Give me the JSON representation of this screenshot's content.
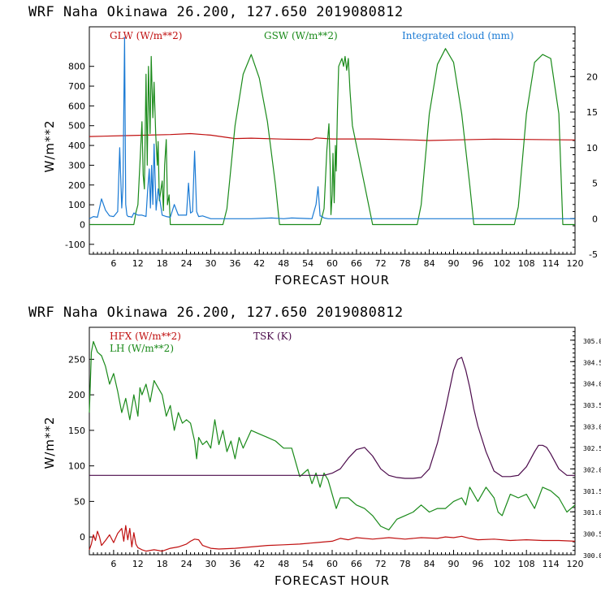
{
  "colors": {
    "red": "#c01010",
    "green": "#1a8a1a",
    "blue": "#1a7ad4",
    "purple": "#4b0a4b"
  },
  "chart_data": [
    {
      "type": "line",
      "title": "WRF   Naha Okinawa   26.200, 127.650   2019080812",
      "xlabel": "FORECAST HOUR",
      "ylabel": "W/m**2",
      "xlim": [
        0,
        120
      ],
      "ylim": [
        -150,
        1000
      ],
      "y2lim": [
        -5,
        27
      ],
      "x_ticks": [
        "6",
        "12",
        "18",
        "24",
        "30",
        "36",
        "42",
        "48",
        "54",
        "60",
        "66",
        "72",
        "78",
        "84",
        "90",
        "96",
        "102",
        "108",
        "114",
        "120"
      ],
      "y_ticks": [
        "-100",
        "0",
        "100",
        "200",
        "300",
        "400",
        "500",
        "600",
        "700",
        "800"
      ],
      "y2_ticks": [
        "-5",
        "0",
        "5",
        "10",
        "15",
        "20"
      ],
      "legend": [
        "GLW (W/m**2)",
        "GSW (W/m**2)",
        "Integrated cloud (mm)"
      ],
      "series": [
        {
          "name": "GLW (W/m**2)",
          "axis": "left",
          "color": "red",
          "x": [
            0,
            10,
            20,
            25,
            30,
            36,
            40,
            48,
            50,
            55,
            56,
            60,
            70,
            80,
            84,
            90,
            100,
            110,
            120
          ],
          "y": [
            445,
            450,
            455,
            460,
            452,
            435,
            437,
            432,
            431,
            430,
            438,
            433,
            433,
            428,
            425,
            428,
            432,
            430,
            428
          ]
        },
        {
          "name": "GSW (W/m**2)",
          "axis": "left",
          "color": "green",
          "x": [
            0,
            11,
            11.5,
            12,
            13,
            13.3,
            13.6,
            14,
            14.3,
            14.6,
            15,
            15.3,
            15.7,
            16,
            16.4,
            16.8,
            17,
            17.3,
            18,
            18.3,
            18.6,
            19,
            19.3,
            19.7,
            20,
            21,
            33,
            34,
            36,
            38,
            40,
            42,
            44,
            46,
            47,
            57,
            58,
            58.7,
            59.2,
            59.5,
            59.7,
            60,
            60.2,
            60.5,
            60.8,
            61,
            61.3,
            61.6,
            62,
            62.4,
            62.8,
            63.2,
            63.6,
            64,
            64.4,
            65,
            66,
            68,
            70,
            71,
            81,
            82,
            84,
            86,
            88,
            90,
            92,
            94,
            95,
            105,
            106,
            108,
            110,
            112,
            114,
            116,
            117,
            120
          ],
          "y": [
            0,
            0,
            60,
            100,
            520,
            250,
            180,
            760,
            300,
            800,
            460,
            850,
            540,
            720,
            460,
            300,
            420,
            120,
            220,
            70,
            300,
            430,
            100,
            150,
            0,
            0,
            0,
            80,
            500,
            760,
            860,
            740,
            520,
            200,
            0,
            0,
            80,
            380,
            510,
            300,
            50,
            150,
            360,
            110,
            400,
            270,
            580,
            800,
            820,
            840,
            800,
            850,
            780,
            840,
            680,
            500,
            400,
            200,
            0,
            0,
            0,
            100,
            560,
            810,
            890,
            820,
            560,
            200,
            0,
            0,
            90,
            560,
            820,
            860,
            840,
            560,
            0,
            0
          ]
        },
        {
          "name": "Integrated cloud (mm)",
          "axis": "right",
          "color": "blue",
          "x": [
            0,
            1,
            2,
            3,
            4,
            5,
            6,
            7,
            7.5,
            8,
            8.3,
            8.7,
            9,
            9.3,
            9.6,
            10,
            10.5,
            11,
            12,
            13,
            14,
            14.4,
            14.8,
            15.1,
            15.4,
            15.7,
            16,
            16.5,
            17,
            18,
            19,
            20,
            21,
            22,
            23,
            24,
            24.5,
            25,
            25.5,
            26,
            26.5,
            27,
            28,
            30,
            35,
            40,
            45,
            48,
            50,
            55,
            56,
            56.5,
            57,
            57.5,
            58,
            59,
            60,
            62,
            65,
            70,
            80,
            90,
            100,
            110,
            120
          ],
          "y": [
            0,
            0.3,
            0.2,
            2.8,
            1.2,
            0.4,
            0.3,
            1,
            10,
            1.5,
            4.5,
            25.5,
            2,
            0.5,
            0.3,
            0.3,
            0.2,
            0.8,
            0.5,
            0.5,
            0.3,
            4,
            7,
            1.5,
            7.5,
            2,
            10.5,
            1.2,
            4.2,
            0.5,
            0.3,
            0.2,
            2,
            0.5,
            0.5,
            0.5,
            5,
            0.8,
            1,
            9.5,
            1,
            0.3,
            0.4,
            0,
            0,
            0,
            0.1,
            0,
            0.1,
            0,
            2,
            4.5,
            0.4,
            0.3,
            0.1,
            0,
            0,
            0,
            0,
            0,
            0,
            0,
            0,
            0,
            0
          ]
        }
      ]
    },
    {
      "type": "line",
      "title": "WRF   Naha Okinawa   26.200, 127.650   2019080812",
      "xlabel": "FORECAST HOUR",
      "ylabel": "W/m**2",
      "xlim": [
        0,
        120
      ],
      "ylim": [
        -25,
        295
      ],
      "y2lim": [
        300.0,
        305.3
      ],
      "x_ticks": [
        "6",
        "12",
        "18",
        "24",
        "30",
        "36",
        "42",
        "48",
        "54",
        "60",
        "66",
        "72",
        "78",
        "84",
        "90",
        "96",
        "102",
        "108",
        "114",
        "120"
      ],
      "y_ticks": [
        "0",
        "50",
        "100",
        "150",
        "200",
        "250"
      ],
      "y2_ticks": [
        "300.0",
        "300.5",
        "301.0",
        "301.5",
        "302.0",
        "302.5",
        "303.0",
        "303.5",
        "304.0",
        "304.5",
        "305.0"
      ],
      "legend": [
        "HFX (W/m**2)",
        "LH  (W/m**2)",
        "TSK (K)"
      ],
      "series": [
        {
          "name": "HFX (W/m**2)",
          "axis": "left",
          "color": "red",
          "x": [
            0,
            0.5,
            1,
            1.5,
            2,
            2.5,
            3,
            4,
            5,
            6,
            7,
            8,
            8.5,
            9,
            9.5,
            10,
            10.5,
            11,
            11.5,
            12,
            13,
            14,
            16,
            18,
            20,
            22,
            24,
            25,
            26,
            27,
            28,
            30,
            32,
            36,
            40,
            44,
            48,
            52,
            56,
            60,
            62,
            64,
            66,
            70,
            74,
            78,
            82,
            86,
            88,
            90,
            92,
            94,
            96,
            100,
            104,
            108,
            112,
            116,
            120
          ],
          "y": [
            -18,
            -10,
            3,
            -5,
            8,
            0,
            -12,
            -5,
            3,
            -8,
            5,
            12,
            -6,
            16,
            -4,
            12,
            -14,
            6,
            -10,
            -15,
            -18,
            -20,
            -18,
            -20,
            -16,
            -14,
            -10,
            -6,
            -3,
            -4,
            -12,
            -16,
            -17,
            -16,
            -14,
            -12,
            -11,
            -10,
            -8,
            -6,
            -2,
            -4,
            -1,
            -3,
            -1,
            -3,
            -1,
            -2,
            0,
            -1,
            1,
            -2,
            -4,
            -3,
            -5,
            -4,
            -5,
            -5,
            -6
          ]
        },
        {
          "name": "LH  (W/m**2)",
          "axis": "left",
          "color": "green",
          "x": [
            0,
            0.5,
            1,
            2,
            3,
            4,
            5,
            6,
            7,
            8,
            9,
            10,
            11,
            12,
            12.5,
            13,
            14,
            15,
            16,
            17,
            18,
            19,
            20,
            21,
            22,
            23,
            24,
            25,
            26,
            26.5,
            27,
            28,
            29,
            30,
            31,
            32,
            33,
            34,
            35,
            36,
            37,
            38,
            40,
            42,
            44,
            46,
            48,
            50,
            52,
            54,
            55,
            56,
            57,
            58,
            59,
            60,
            61,
            62,
            64,
            66,
            68,
            70,
            72,
            74,
            76,
            78,
            80,
            82,
            84,
            86,
            88,
            90,
            92,
            93,
            94,
            96,
            98,
            100,
            101,
            102,
            104,
            106,
            108,
            110,
            112,
            114,
            116,
            118,
            120
          ],
          "y": [
            175,
            260,
            275,
            260,
            255,
            240,
            215,
            230,
            205,
            175,
            195,
            165,
            200,
            170,
            210,
            200,
            215,
            190,
            220,
            210,
            200,
            170,
            185,
            150,
            175,
            160,
            165,
            160,
            135,
            110,
            140,
            130,
            135,
            125,
            165,
            130,
            150,
            120,
            135,
            110,
            140,
            125,
            150,
            145,
            140,
            135,
            125,
            125,
            85,
            95,
            75,
            90,
            70,
            90,
            80,
            60,
            40,
            55,
            55,
            45,
            40,
            30,
            15,
            10,
            25,
            30,
            35,
            45,
            35,
            40,
            40,
            50,
            55,
            45,
            70,
            50,
            70,
            55,
            35,
            30,
            60,
            55,
            60,
            40,
            70,
            65,
            55,
            35,
            45
          ]
        },
        {
          "name": "TSK (K)",
          "axis": "right",
          "color": "purple",
          "x": [
            0,
            10,
            20,
            30,
            40,
            50,
            54,
            56,
            58,
            60,
            62,
            64,
            66,
            68,
            70,
            72,
            74,
            76,
            78,
            80,
            82,
            84,
            86,
            88,
            90,
            91,
            92,
            93,
            94,
            95,
            96,
            98,
            100,
            102,
            104,
            106,
            108,
            110,
            111,
            112,
            113,
            114,
            116,
            118,
            120
          ],
          "y": [
            301.85,
            301.85,
            301.85,
            301.85,
            301.85,
            301.85,
            301.85,
            301.85,
            301.85,
            301.9,
            302.0,
            302.25,
            302.45,
            302.5,
            302.3,
            302.0,
            301.85,
            301.8,
            301.78,
            301.78,
            301.8,
            302.0,
            302.6,
            303.4,
            304.3,
            304.55,
            304.6,
            304.3,
            303.9,
            303.4,
            303.0,
            302.4,
            301.95,
            301.82,
            301.82,
            301.85,
            302.05,
            302.4,
            302.55,
            302.55,
            302.5,
            302.35,
            302.0,
            301.85,
            301.85
          ]
        }
      ]
    }
  ]
}
